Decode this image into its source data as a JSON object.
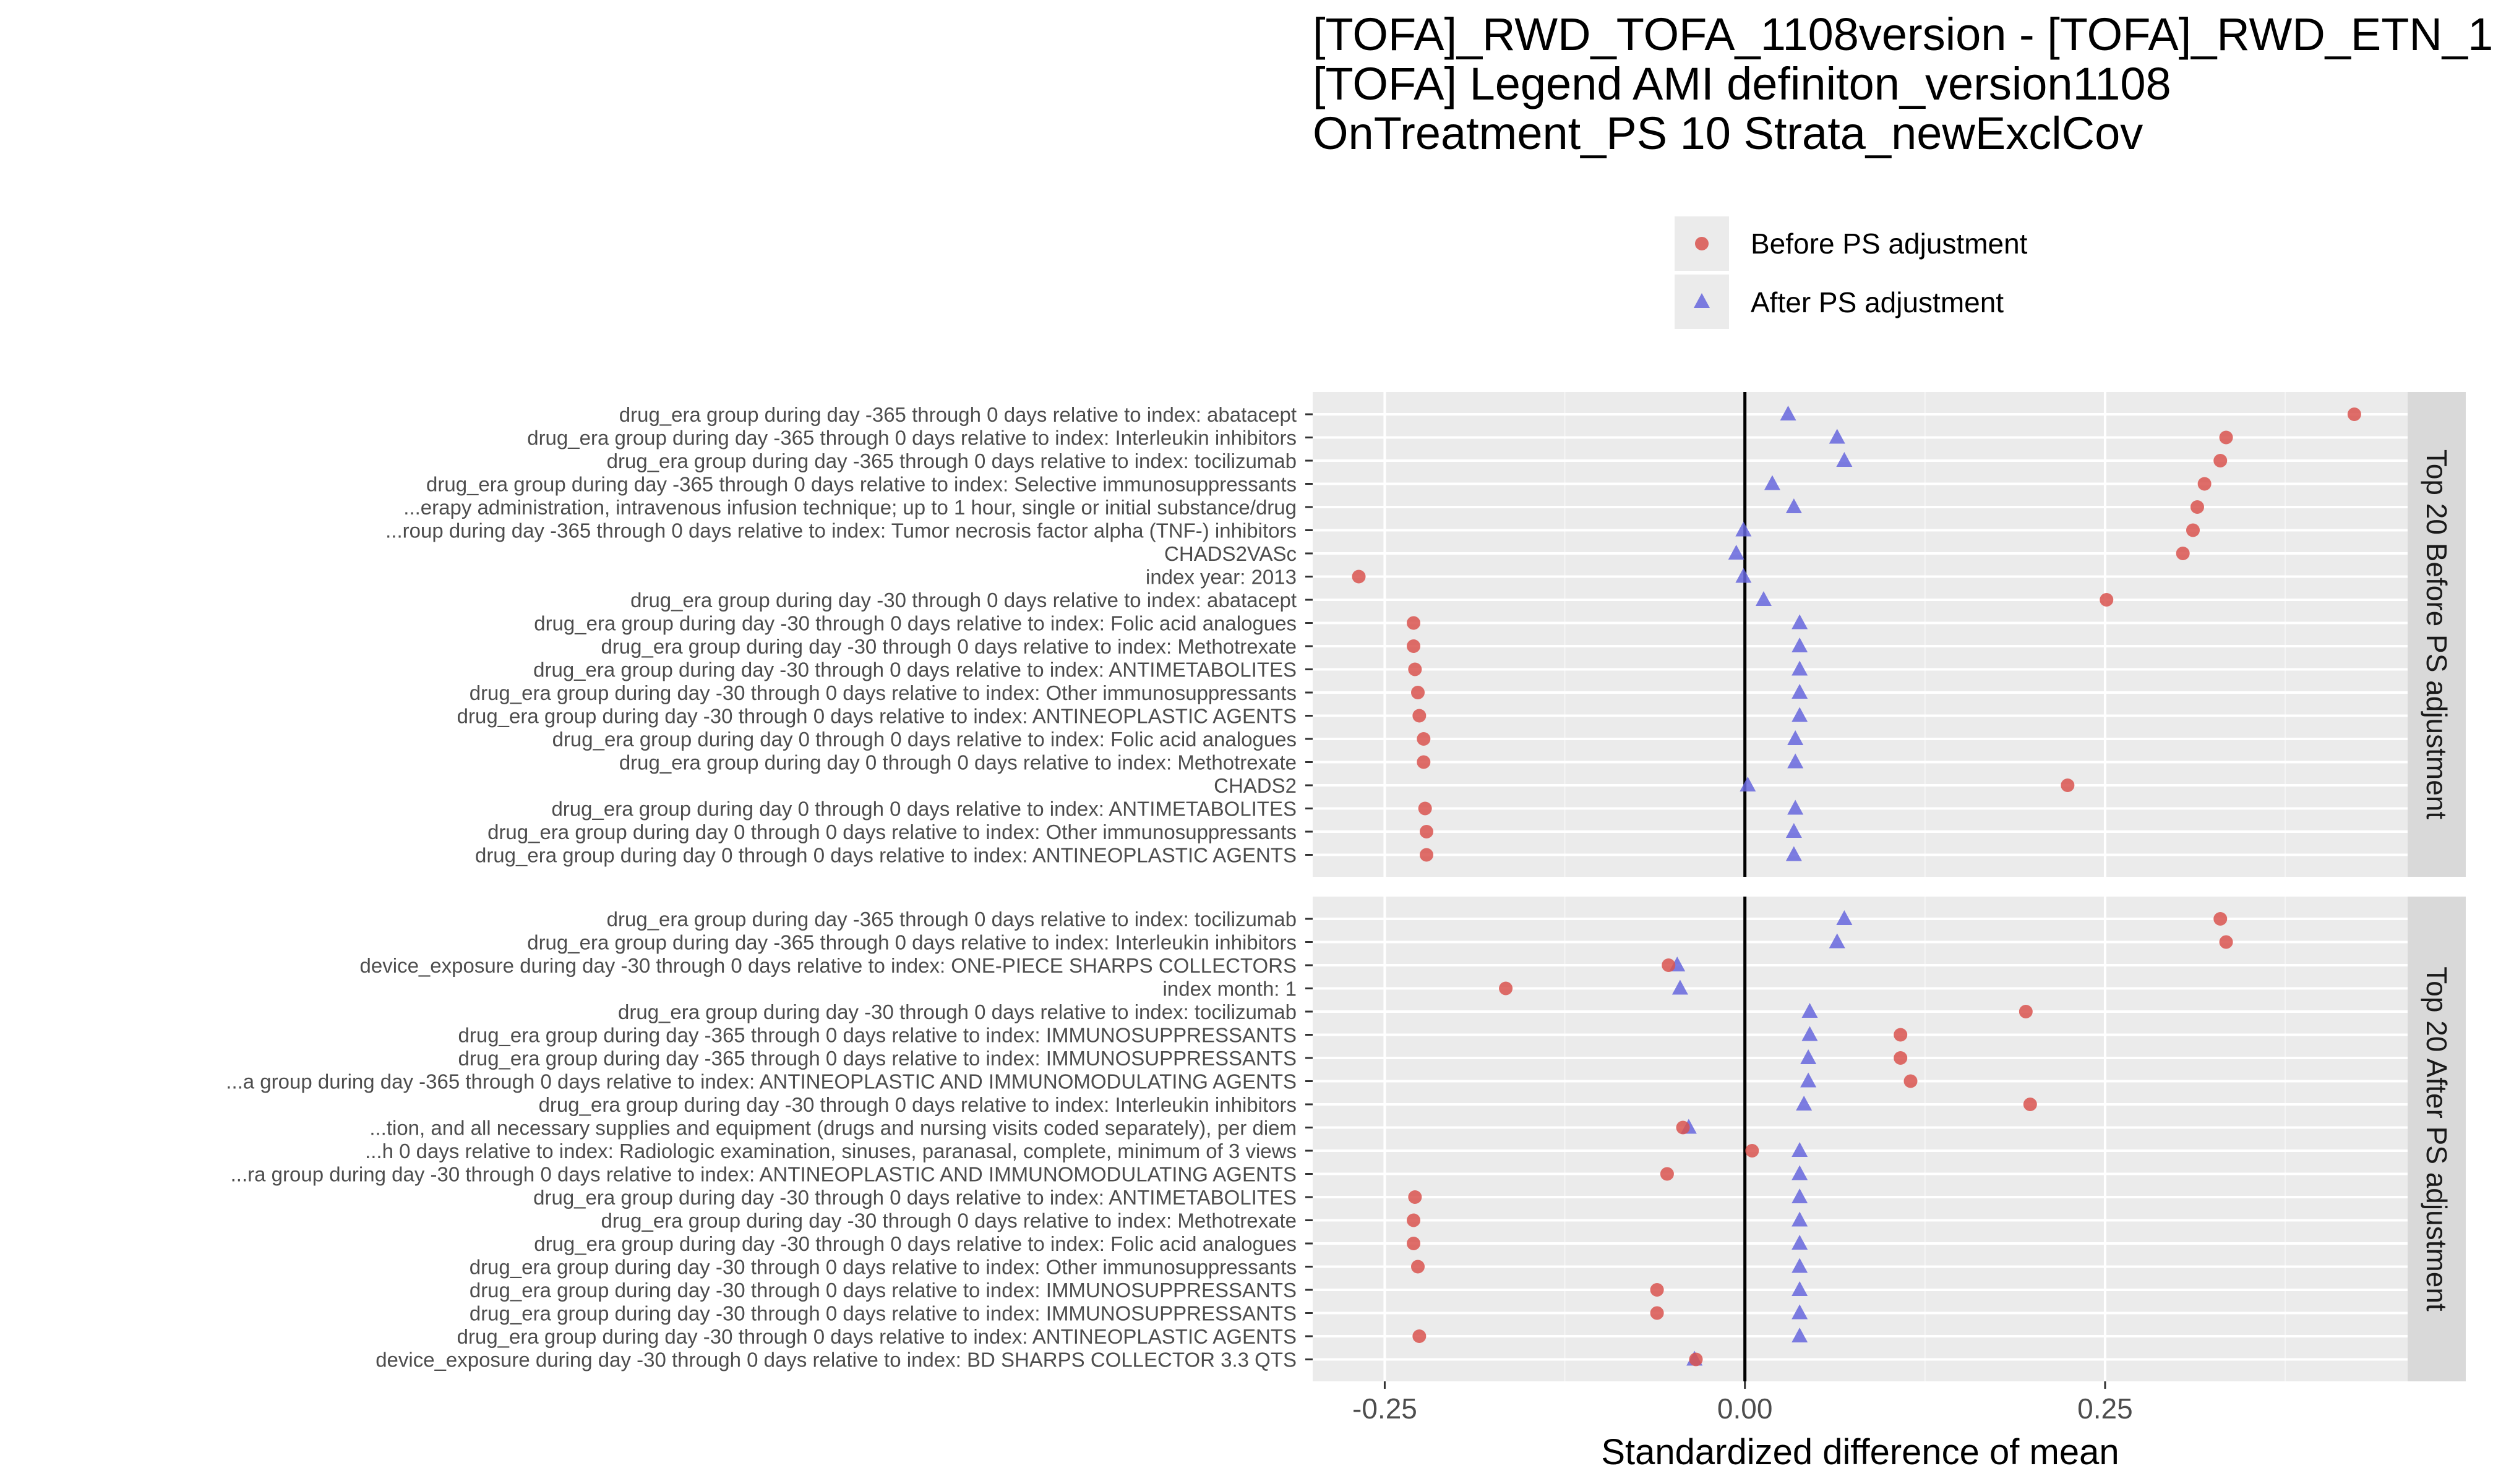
{
  "chart_data": {
    "type": "scatter",
    "title_lines": [
      "[TOFA]_RWD_TOFA_1108version - [TOFA]_RWD_ETN_1",
      "[TOFA] Legend AMI definiton_version1108",
      "OnTreatment_PS 10 Strata_newExclCov"
    ],
    "xlabel": "Standardized difference of mean",
    "xlim": [
      -0.3,
      0.46
    ],
    "xticks": [
      -0.25,
      0.0,
      0.25
    ],
    "xtick_labels": [
      "-0.25",
      "0.00",
      "0.25"
    ],
    "grid": true,
    "legend": {
      "placement": "top",
      "entries": [
        {
          "label": "Before PS adjustment",
          "shape": "circle",
          "color": "#d9534f"
        },
        {
          "label": "After PS adjustment",
          "shape": "triangle",
          "color": "#6666dd"
        }
      ]
    },
    "panels": [
      {
        "strip": "Top 20 Before PS adjustment",
        "covariates": [
          {
            "label": "drug_era group during day -365 through 0 days relative to index: abatacept",
            "before": 0.423,
            "after": 0.03
          },
          {
            "label": "drug_era group during day -365 through 0 days relative to index: Interleukin inhibitors",
            "before": 0.334,
            "after": 0.064
          },
          {
            "label": "drug_era group during day -365 through 0 days relative to index: tocilizumab",
            "before": 0.33,
            "after": 0.069
          },
          {
            "label": "drug_era group during day -365 through 0 days relative to index: Selective immunosuppressants",
            "before": 0.319,
            "after": 0.019
          },
          {
            "label": "...erapy administration, intravenous infusion technique; up to 1 hour, single or initial substance/drug",
            "before": 0.314,
            "after": 0.034
          },
          {
            "label": "...roup during day -365 through 0 days relative to index: Tumor necrosis factor alpha (TNF-) inhibitors",
            "before": 0.311,
            "after": -0.001
          },
          {
            "label": "CHADS2VASc",
            "before": 0.304,
            "after": -0.006
          },
          {
            "label": "index year: 2013",
            "before": -0.268,
            "after": -0.001
          },
          {
            "label": "drug_era group during day -30 through 0 days relative to index: abatacept",
            "before": 0.251,
            "after": 0.013
          },
          {
            "label": "drug_era group during day -30 through 0 days relative to index: Folic acid analogues",
            "before": -0.23,
            "after": 0.038
          },
          {
            "label": "drug_era group during day -30 through 0 days relative to index: Methotrexate",
            "before": -0.23,
            "after": 0.038
          },
          {
            "label": "drug_era group during day -30 through 0 days relative to index: ANTIMETABOLITES",
            "before": -0.229,
            "after": 0.038
          },
          {
            "label": "drug_era group during day -30 through 0 days relative to index: Other immunosuppressants",
            "before": -0.227,
            "after": 0.038
          },
          {
            "label": "drug_era group during day -30 through 0 days relative to index: ANTINEOPLASTIC AGENTS",
            "before": -0.226,
            "after": 0.038
          },
          {
            "label": "drug_era group during day 0 through 0 days relative to index: Folic acid analogues",
            "before": -0.223,
            "after": 0.035
          },
          {
            "label": "drug_era group during day 0 through 0 days relative to index: Methotrexate",
            "before": -0.223,
            "after": 0.035
          },
          {
            "label": "CHADS2",
            "before": 0.224,
            "after": 0.002
          },
          {
            "label": "drug_era group during day 0 through 0 days relative to index: ANTIMETABOLITES",
            "before": -0.222,
            "after": 0.035
          },
          {
            "label": "drug_era group during day 0 through 0 days relative to index: Other immunosuppressants",
            "before": -0.221,
            "after": 0.034
          },
          {
            "label": "drug_era group during day 0 through 0 days relative to index: ANTINEOPLASTIC AGENTS",
            "before": -0.221,
            "after": 0.034
          }
        ]
      },
      {
        "strip": "Top 20 After PS adjustment",
        "covariates": [
          {
            "label": "drug_era group during day -365 through 0 days relative to index: tocilizumab",
            "before": 0.33,
            "after": 0.069
          },
          {
            "label": "drug_era group during day -365 through 0 days relative to index: Interleukin inhibitors",
            "before": 0.334,
            "after": 0.064
          },
          {
            "label": "device_exposure during day -30 through 0 days relative to index: ONE-PIECE SHARPS COLLECTORS",
            "before": -0.053,
            "after": -0.047
          },
          {
            "label": "index month: 1",
            "before": -0.166,
            "after": -0.045
          },
          {
            "label": "drug_era group during day -30 through 0 days relative to index: tocilizumab",
            "before": 0.195,
            "after": 0.045
          },
          {
            "label": "drug_era group during day -365 through 0 days relative to index: IMMUNOSUPPRESSANTS",
            "before": 0.108,
            "after": 0.045
          },
          {
            "label": "drug_era group during day -365 through 0 days relative to index: IMMUNOSUPPRESSANTS",
            "before": 0.108,
            "after": 0.044
          },
          {
            "label": "...a group during day -365 through 0 days relative to index: ANTINEOPLASTIC AND IMMUNOMODULATING AGENTS",
            "before": 0.115,
            "after": 0.044
          },
          {
            "label": "drug_era group during day -30 through 0 days relative to index: Interleukin inhibitors",
            "before": 0.198,
            "after": 0.041
          },
          {
            "label": "...tion, and all necessary supplies and equipment (drugs and nursing visits coded separately), per diem",
            "before": -0.043,
            "after": -0.039
          },
          {
            "label": "...h 0 days relative to index: Radiologic examination, sinuses, paranasal, complete, minimum of 3 views",
            "before": 0.005,
            "after": 0.038
          },
          {
            "label": "...ra group during day -30 through 0 days relative to index: ANTINEOPLASTIC AND IMMUNOMODULATING AGENTS",
            "before": -0.054,
            "after": 0.038
          },
          {
            "label": "drug_era group during day -30 through 0 days relative to index: ANTIMETABOLITES",
            "before": -0.229,
            "after": 0.038
          },
          {
            "label": "drug_era group during day -30 through 0 days relative to index: Methotrexate",
            "before": -0.23,
            "after": 0.038
          },
          {
            "label": "drug_era group during day -30 through 0 days relative to index: Folic acid analogues",
            "before": -0.23,
            "after": 0.038
          },
          {
            "label": "drug_era group during day -30 through 0 days relative to index: Other immunosuppressants",
            "before": -0.227,
            "after": 0.038
          },
          {
            "label": "drug_era group during day -30 through 0 days relative to index: IMMUNOSUPPRESSANTS",
            "before": -0.061,
            "after": 0.038
          },
          {
            "label": "drug_era group during day -30 through 0 days relative to index: IMMUNOSUPPRESSANTS",
            "before": -0.061,
            "after": 0.038
          },
          {
            "label": "drug_era group during day -30 through 0 days relative to index: ANTINEOPLASTIC AGENTS",
            "before": -0.226,
            "after": 0.038
          },
          {
            "label": "device_exposure during day -30 through 0 days relative to index: BD SHARPS COLLECTOR 3.3 QTS",
            "before": -0.034,
            "after": -0.035
          }
        ]
      }
    ]
  }
}
